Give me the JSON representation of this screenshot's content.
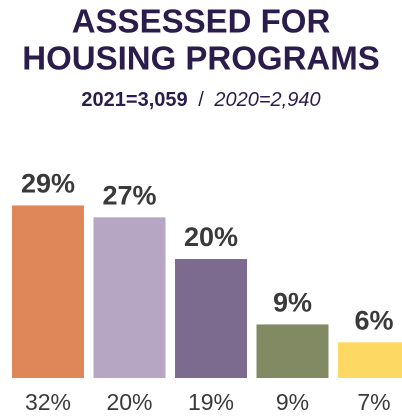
{
  "chart_data": {
    "type": "bar",
    "title": [
      "ASSESSED FOR",
      "HOUSING PROGRAMS"
    ],
    "subtitle": [
      "2021=3,059",
      "/",
      "2020=2,940"
    ],
    "categories": [
      null,
      null,
      null,
      null,
      null
    ],
    "colors": [
      "#e0875a",
      "#b6a6c3",
      "#7d6b8f",
      "#818a62",
      "#fdd862"
    ],
    "series": [
      {
        "values": [
          29,
          27,
          20,
          9,
          6
        ],
        "value_labels": [
          "29%",
          "27%",
          "20%",
          "9%",
          "6%"
        ]
      },
      {
        "values": [
          32,
          20,
          19,
          9,
          7
        ],
        "value_labels": [
          "32%",
          "20%",
          "19%",
          "9%",
          "7%"
        ]
      }
    ]
  }
}
